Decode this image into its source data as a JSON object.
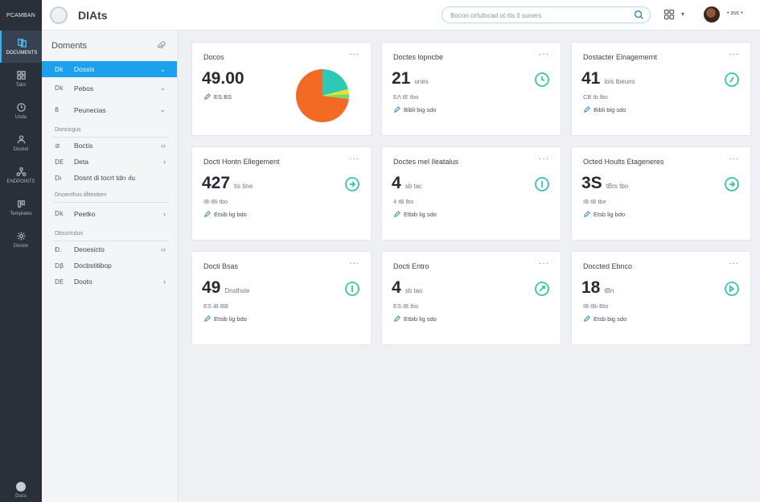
{
  "rail": {
    "brand": "PCAMBAN",
    "items": [
      "DOCUMENTS",
      "Tabs",
      "Usda",
      "Docket",
      "ENDPOINTS",
      "Templates",
      "Docion"
    ],
    "bottom": "Docs"
  },
  "header": {
    "title": "DIAts",
    "search_placeholder": "Bocon cirlufocad ot rlis tl suners",
    "user_name": "• zuc •",
    "caret": "▾"
  },
  "sidebar": {
    "header": "Doments",
    "items_top": [
      {
        "icon": "Dk",
        "label": "Dossis",
        "chevron": "⌄"
      },
      {
        "icon": "Dk",
        "label": "Pebos",
        "chevron": "⌄"
      },
      {
        "icon": "8",
        "label": "Peunecias",
        "chevron": "⌄"
      }
    ],
    "section1": "Doncicgus",
    "items_mid": [
      {
        "icon": "⊘",
        "label": "Boctis",
        "chevron": "‹›"
      },
      {
        "icon": "DE",
        "label": "Deta",
        "chevron": "›"
      },
      {
        "icon": "Dı",
        "label": "Dosnt di tocrt tdrı ılu",
        "chevron": ""
      }
    ],
    "section2": "Dnoenthus dliteoben",
    "items_lower": [
      {
        "icon": "Dk",
        "label": "Peetko",
        "chevron": "›"
      }
    ],
    "section3": "Dbssrtcdus",
    "items_bottom": [
      {
        "icon": "Ɖ.",
        "label": "Deoesicto",
        "chevron": "‹›"
      },
      {
        "icon": "Dβ",
        "label": "Docbstitibop",
        "chevron": ""
      },
      {
        "icon": "DE",
        "label": "Dooto",
        "chevron": "›"
      }
    ]
  },
  "cards": [
    {
      "title": "Docos",
      "value": "49.00",
      "unit": "",
      "sub": "",
      "link": "ES BS",
      "pie": true
    },
    {
      "title": "Doctes lopncbe",
      "value": "21",
      "unit": "unes",
      "sub": "EΛ tE tbo",
      "link": "Bibli big sdo"
    },
    {
      "title": "Dostacter Elnagemernt",
      "value": "41",
      "unit": "lois tbeuns",
      "sub": "CB tb lbo",
      "link": "Bibli big sdo"
    },
    {
      "title": "Docti Hontn Ellegement",
      "value": "427",
      "unit": "tis tine",
      "sub": "IB iBi tbo",
      "link": "Etsib lig bdo"
    },
    {
      "title": "Doctes mel Ileatalus",
      "value": "4",
      "unit": "sb tac",
      "sub": "4 tB lbo",
      "link": "Etbib lig sdo"
    },
    {
      "title": "Octed Hoults Etageneres",
      "value": "3S",
      "unit": "tBrs tbo",
      "sub": "IB tB tbe",
      "link": "Etsb lig bdo"
    },
    {
      "title": "Docti Bsas",
      "value": "49",
      "unit": "Dnsthsle",
      "sub": "ES iB BB",
      "link": "Etsib lig bdo"
    },
    {
      "title": "Docti Entro",
      "value": "4",
      "unit": "sb tao",
      "sub": "ES tB lbo",
      "link": "Etbib lig sdo"
    },
    {
      "title": "Doccted Ebnco",
      "value": "18",
      "unit": "tBn",
      "sub": "IB tBi Bto",
      "link": "Etsb big sdo"
    }
  ],
  "chart_data": {
    "type": "pie",
    "values": [
      73,
      21,
      3,
      3
    ],
    "colors": [
      "#f26a24",
      "#2ec9b4",
      "#e9e227",
      "#7dd86a"
    ]
  },
  "colors": {
    "accent": "#1da1ee",
    "ring": "#36c6a6",
    "rail": "#2a3039"
  }
}
